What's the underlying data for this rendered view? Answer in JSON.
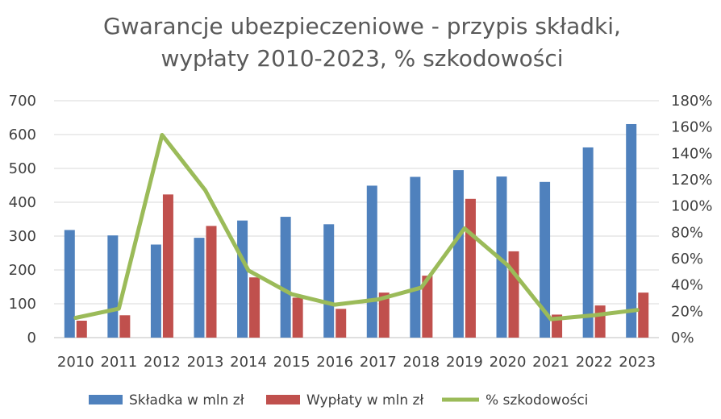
{
  "chart_data": {
    "type": "bar",
    "title": "Gwarancje ubezpieczeniowe - przypis składki, wypłaty 2010-2023, % szkodowości",
    "title_lines": [
      "Gwarancje ubezpieczeniowe - przypis składki,",
      "wypłaty 2010-2023, % szkodowości"
    ],
    "categories": [
      "2010",
      "2011",
      "2012",
      "2013",
      "2014",
      "2015",
      "2016",
      "2017",
      "2018",
      "2019",
      "2020",
      "2021",
      "2022",
      "2023"
    ],
    "series": [
      {
        "name": "Składka w mln zł",
        "kind": "bar",
        "axis": "left",
        "color": "#4F81BD",
        "values": [
          318,
          302,
          275,
          295,
          346,
          357,
          335,
          449,
          475,
          495,
          476,
          460,
          562,
          631
        ]
      },
      {
        "name": "Wypłaty w mln zł",
        "kind": "bar",
        "axis": "left",
        "color": "#C0504D",
        "values": [
          50,
          66,
          423,
          330,
          178,
          118,
          85,
          133,
          183,
          410,
          255,
          68,
          95,
          133
        ]
      },
      {
        "name": "% szkodowości",
        "kind": "line",
        "axis": "right",
        "color": "#9BBB59",
        "values": [
          15,
          22,
          154,
          112,
          51,
          33,
          25,
          29,
          38,
          83,
          55,
          14,
          17,
          21
        ]
      }
    ],
    "y_left": {
      "min": 0,
      "max": 700,
      "ticks": [
        0,
        100,
        200,
        300,
        400,
        500,
        600,
        700
      ],
      "labels": [
        "0",
        "100",
        "200",
        "300",
        "400",
        "500",
        "600",
        "700"
      ]
    },
    "y_right": {
      "min": 0,
      "max": 180,
      "ticks": [
        0,
        20,
        40,
        60,
        80,
        100,
        120,
        140,
        160,
        180
      ],
      "labels": [
        "0%",
        "20%",
        "40%",
        "60%",
        "80%",
        "100%",
        "120%",
        "140%",
        "160%",
        "180%"
      ]
    },
    "grid": true,
    "legend_position": "bottom"
  }
}
